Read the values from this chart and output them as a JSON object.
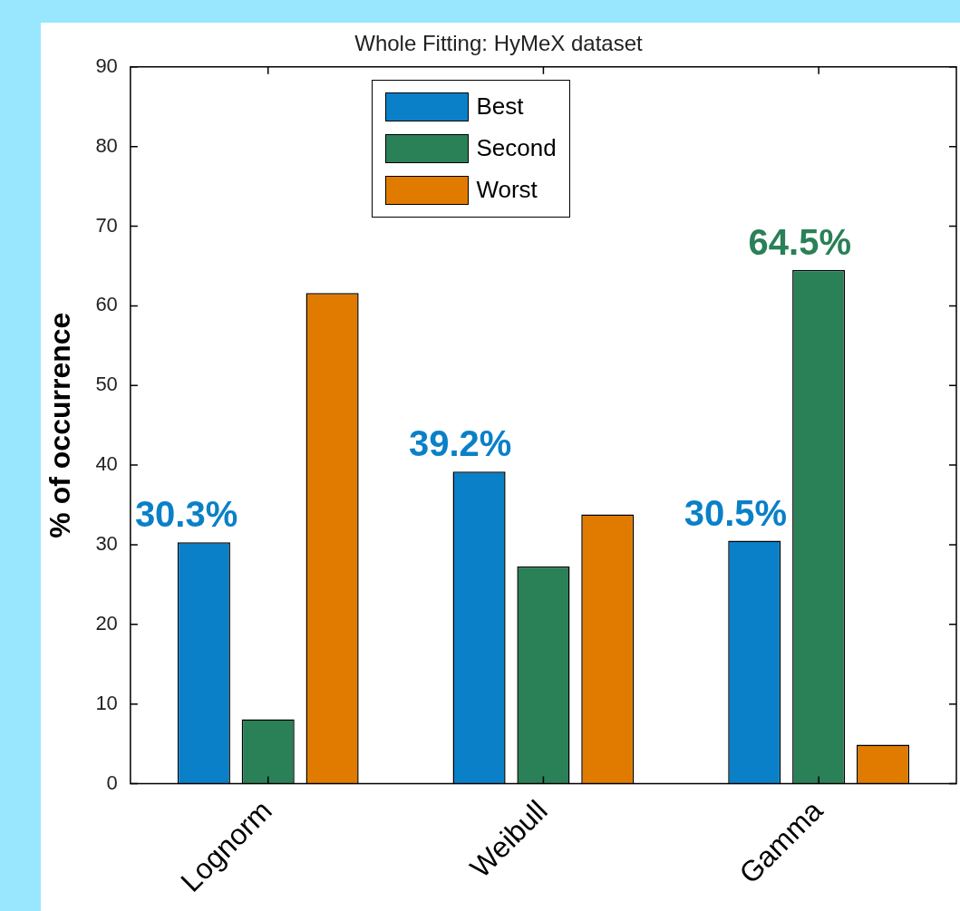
{
  "chart_data": {
    "type": "bar",
    "title": "Whole Fitting: HyMeX dataset",
    "ylabel": "% of occurrence",
    "categories": [
      "Lognorm",
      "Weibull",
      "Gamma"
    ],
    "series": [
      {
        "name": "Best",
        "color": "#0a80c8",
        "values": [
          30.3,
          39.2,
          30.5
        ],
        "value_labels": [
          "30.3%",
          "39.2%",
          "30.5%"
        ]
      },
      {
        "name": "Second",
        "color": "#2a8057",
        "values": [
          8.1,
          27.3,
          64.5
        ],
        "value_labels": [
          null,
          null,
          "64.5%"
        ]
      },
      {
        "name": "Worst",
        "color": "#e07b00",
        "values": [
          61.6,
          33.8,
          4.9
        ]
      }
    ],
    "ylim": [
      0,
      90
    ],
    "yticks": [
      0,
      10,
      20,
      30,
      40,
      50,
      60,
      70,
      80,
      90
    ],
    "grid": false,
    "legend": "top"
  }
}
